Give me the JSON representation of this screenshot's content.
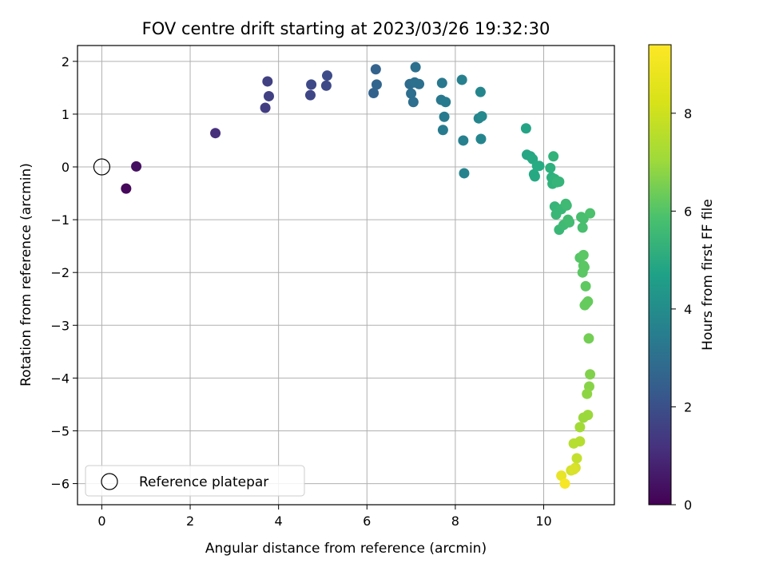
{
  "chart_data": {
    "type": "scatter",
    "title": "FOV centre drift starting at 2023/03/26 19:32:30",
    "xlabel": "Angular distance from reference (arcmin)",
    "ylabel": "Rotation from reference (arcmin)",
    "xlim": [
      -0.55,
      11.6
    ],
    "ylim": [
      -6.4,
      2.3
    ],
    "xticks": [
      0,
      2,
      4,
      6,
      8,
      10
    ],
    "yticks": [
      -6,
      -5,
      -4,
      -3,
      -2,
      -1,
      0,
      1,
      2
    ],
    "grid": true,
    "colorbar": {
      "label": "Hours from first FF file",
      "range": [
        0,
        9.4
      ],
      "ticks": [
        0,
        2,
        4,
        6,
        8
      ],
      "colormap": "viridis"
    },
    "legend": {
      "placement": "lower-left",
      "entries": [
        "Reference platepar"
      ]
    },
    "reference_point": {
      "x": 0,
      "y": 0,
      "label": "Reference platepar"
    },
    "series": [
      {
        "points": [
          [
            0.55,
            -0.41,
            0.2
          ],
          [
            0.78,
            0.01,
            0.4
          ],
          [
            2.57,
            0.64,
            1.3
          ],
          [
            3.7,
            1.12,
            1.7
          ],
          [
            3.75,
            1.62,
            1.8
          ],
          [
            3.78,
            1.34,
            1.8
          ],
          [
            4.72,
            1.36,
            2.0
          ],
          [
            4.74,
            1.56,
            2.1
          ],
          [
            5.08,
            1.54,
            2.1
          ],
          [
            5.1,
            1.73,
            2.2
          ],
          [
            6.15,
            1.4,
            3.0
          ],
          [
            6.2,
            1.85,
            3.0
          ],
          [
            6.22,
            1.56,
            3.1
          ],
          [
            6.97,
            1.57,
            3.3
          ],
          [
            7.0,
            1.39,
            3.4
          ],
          [
            7.05,
            1.23,
            3.4
          ],
          [
            7.08,
            1.6,
            3.5
          ],
          [
            7.1,
            1.89,
            3.5
          ],
          [
            7.18,
            1.57,
            3.5
          ],
          [
            7.68,
            1.27,
            3.8
          ],
          [
            7.7,
            1.59,
            3.8
          ],
          [
            7.72,
            0.7,
            3.9
          ],
          [
            7.75,
            0.95,
            3.9
          ],
          [
            7.78,
            1.23,
            3.9
          ],
          [
            8.15,
            1.65,
            4.1
          ],
          [
            8.18,
            0.5,
            4.1
          ],
          [
            8.2,
            -0.12,
            4.2
          ],
          [
            8.53,
            0.92,
            4.3
          ],
          [
            8.57,
            1.42,
            4.3
          ],
          [
            8.58,
            0.53,
            4.3
          ],
          [
            8.6,
            0.96,
            4.4
          ],
          [
            9.6,
            0.73,
            5.5
          ],
          [
            9.62,
            0.23,
            5.6
          ],
          [
            9.7,
            0.2,
            5.6
          ],
          [
            9.75,
            0.15,
            5.7
          ],
          [
            9.78,
            -0.14,
            5.7
          ],
          [
            9.8,
            -0.18,
            5.7
          ],
          [
            9.85,
            0.02,
            5.8
          ],
          [
            9.9,
            0.02,
            5.8
          ],
          [
            10.15,
            -0.02,
            6.0
          ],
          [
            10.18,
            -0.2,
            6.0
          ],
          [
            10.2,
            -0.32,
            6.1
          ],
          [
            10.22,
            0.2,
            6.1
          ],
          [
            10.25,
            -0.23,
            6.1
          ],
          [
            10.3,
            -0.29,
            6.2
          ],
          [
            10.35,
            -0.28,
            6.2
          ],
          [
            10.25,
            -0.75,
            6.2
          ],
          [
            10.28,
            -0.9,
            6.3
          ],
          [
            10.35,
            -1.19,
            6.3
          ],
          [
            10.4,
            -0.8,
            6.3
          ],
          [
            10.45,
            -1.1,
            6.4
          ],
          [
            10.5,
            -0.7,
            6.4
          ],
          [
            10.52,
            -0.73,
            6.4
          ],
          [
            10.55,
            -1.0,
            6.5
          ],
          [
            10.58,
            -1.05,
            6.5
          ],
          [
            10.85,
            -0.95,
            6.6
          ],
          [
            10.88,
            -1.15,
            6.6
          ],
          [
            10.9,
            -0.98,
            6.6
          ],
          [
            11.05,
            -0.88,
            6.7
          ],
          [
            10.82,
            -1.72,
            6.9
          ],
          [
            10.88,
            -2.0,
            7.0
          ],
          [
            10.9,
            -1.67,
            7.0
          ],
          [
            10.9,
            -1.87,
            7.0
          ],
          [
            10.92,
            -1.9,
            7.0
          ],
          [
            10.95,
            -2.26,
            7.1
          ],
          [
            10.93,
            -2.62,
            7.2
          ],
          [
            10.97,
            -2.58,
            7.2
          ],
          [
            11.0,
            -2.55,
            7.2
          ],
          [
            11.02,
            -3.25,
            7.4
          ],
          [
            11.05,
            -3.93,
            7.6
          ],
          [
            11.03,
            -4.16,
            7.7
          ],
          [
            10.98,
            -4.3,
            7.8
          ],
          [
            10.9,
            -4.75,
            8.0
          ],
          [
            11.0,
            -4.7,
            8.0
          ],
          [
            10.82,
            -4.93,
            8.1
          ],
          [
            10.68,
            -5.24,
            8.4
          ],
          [
            10.82,
            -5.2,
            8.4
          ],
          [
            10.75,
            -5.52,
            8.6
          ],
          [
            10.62,
            -5.75,
            8.8
          ],
          [
            10.72,
            -5.7,
            8.8
          ],
          [
            10.68,
            -5.73,
            8.9
          ],
          [
            10.4,
            -5.85,
            9.1
          ],
          [
            10.48,
            -6.0,
            9.3
          ]
        ]
      }
    ]
  }
}
